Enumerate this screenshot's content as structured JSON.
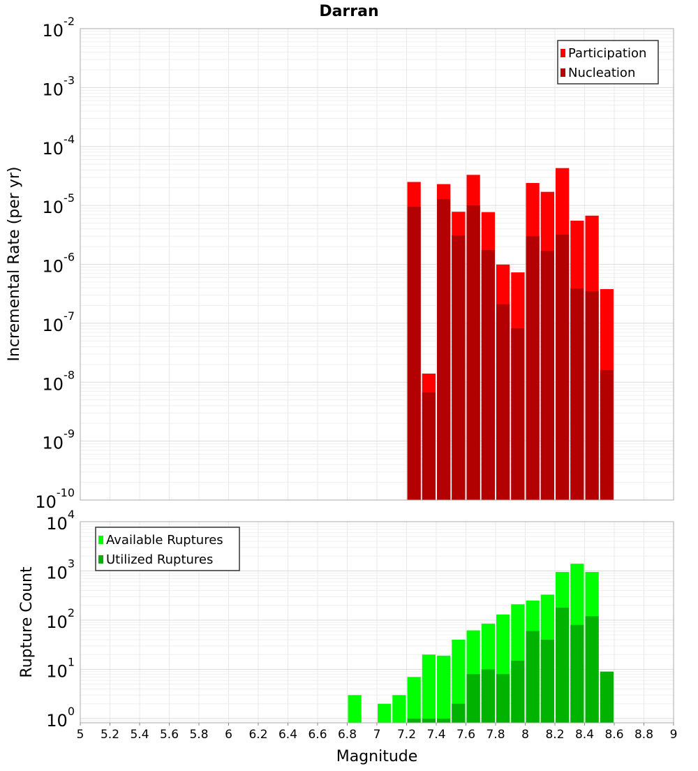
{
  "chart_data": [
    {
      "type": "bar",
      "title": "Darran",
      "xlabel": "",
      "ylabel": "Incremental Rate (per yr)",
      "yscale": "log",
      "ylim": [
        1e-10,
        0.01
      ],
      "xlim": [
        5,
        9
      ],
      "grid": true,
      "legend_position": "top-right",
      "y_tick_exponents": [
        "-2",
        "-3",
        "-4",
        "-5",
        "-6",
        "-7",
        "-8",
        "-9",
        "-10"
      ],
      "bin_width": 0.1,
      "x": [
        7.25,
        7.35,
        7.45,
        7.55,
        7.65,
        7.75,
        7.85,
        7.95,
        8.05,
        8.15,
        8.25,
        8.35,
        8.45,
        8.55
      ],
      "series": [
        {
          "name": "Participation",
          "color": "#ff0000",
          "values": [
            2.5e-05,
            1.4e-08,
            2.3e-05,
            7.8e-06,
            3.3e-05,
            7.7e-06,
            9.9e-07,
            7.3e-07,
            2.4e-05,
            1.7e-05,
            4.3e-05,
            5.5e-06,
            6.7e-06,
            3.8e-07
          ]
        },
        {
          "name": "Nucleation",
          "color": "#b30000",
          "values": [
            9.5e-06,
            6.7e-09,
            1.28e-05,
            3.1e-06,
            1e-05,
            1.75e-06,
            2.1e-07,
            8.2e-08,
            3e-06,
            1.7e-06,
            3.2e-06,
            3.9e-07,
            3.5e-07,
            1.6e-08
          ]
        }
      ]
    },
    {
      "type": "bar",
      "xlabel": "Magnitude",
      "ylabel": "Rupture Count",
      "yscale": "log",
      "ylim": [
        0.82,
        10000
      ],
      "xlim": [
        5,
        9
      ],
      "grid": true,
      "legend_position": "top-left",
      "y_tick_exponents": [
        "4",
        "3",
        "2",
        "1",
        "0"
      ],
      "x_tick_labels": [
        "5",
        "5.2",
        "5.4",
        "5.6",
        "5.8",
        "6",
        "6.2",
        "6.4",
        "6.6",
        "6.8",
        "7",
        "7.2",
        "7.4",
        "7.6",
        "7.8",
        "8",
        "8.2",
        "8.4",
        "8.6",
        "8.8",
        "9"
      ],
      "bin_width": 0.1,
      "series": [
        {
          "name": "Available Ruptures",
          "color": "#00ff00",
          "x": [
            6.85,
            7.05,
            7.15,
            7.25,
            7.35,
            7.45,
            7.55,
            7.65,
            7.75,
            7.85,
            7.95,
            8.05,
            8.15,
            8.25,
            8.35,
            8.45
          ],
          "values": [
            3,
            2,
            3,
            7,
            20,
            19,
            40,
            62,
            85,
            130,
            210,
            250,
            330,
            950,
            1400,
            950
          ]
        },
        {
          "name": "Utilized Ruptures",
          "color": "#00b300",
          "x": [
            7.25,
            7.35,
            7.45,
            7.55,
            7.65,
            7.75,
            7.85,
            7.95,
            8.05,
            8.15,
            8.25,
            8.35,
            8.45,
            8.55
          ],
          "values": [
            1,
            1,
            1,
            2,
            8,
            10,
            8,
            15,
            60,
            40,
            180,
            80,
            120,
            9
          ]
        }
      ]
    }
  ]
}
